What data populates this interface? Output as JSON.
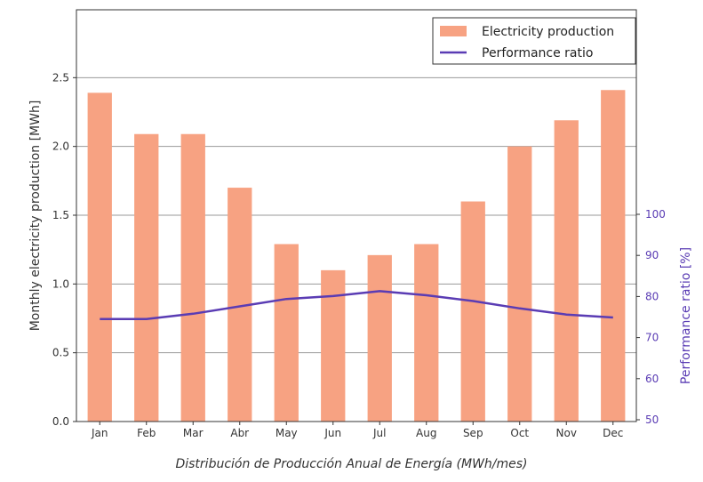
{
  "chart_data": {
    "type": "bar",
    "categories": [
      "Jan",
      "Feb",
      "Mar",
      "Abr",
      "May",
      "Jun",
      "Jul",
      "Aug",
      "Sep",
      "Oct",
      "Nov",
      "Dec"
    ],
    "series": [
      {
        "name": "Electricity production",
        "kind": "bar",
        "axis": "left",
        "color": "#f7a282",
        "values": [
          2.39,
          2.09,
          2.09,
          1.7,
          1.29,
          1.1,
          1.21,
          1.29,
          1.6,
          2.0,
          2.19,
          2.41
        ]
      },
      {
        "name": "Performance ratio",
        "kind": "line",
        "axis": "right",
        "color": "#5a3cb4",
        "values": [
          74.5,
          74.5,
          75.8,
          77.6,
          79.4,
          80.1,
          81.3,
          80.3,
          78.9,
          77.1,
          75.6,
          74.9
        ]
      }
    ],
    "ylabel": "Monthly electricity production [MWh]",
    "ylim": [
      0,
      3.0
    ],
    "yticks": [
      "0.0",
      "0.5",
      "1.0",
      "1.5",
      "2.0",
      "2.5"
    ],
    "y2label": "Performance ratio [%]",
    "y2lim": [
      50,
      100
    ],
    "y2ticks": [
      "50",
      "60",
      "70",
      "80",
      "90",
      "100"
    ],
    "grid": "horizontal",
    "legend_position": "top-right",
    "caption": "Distribución de Producción Anual de Energía (MWh/mes)"
  }
}
